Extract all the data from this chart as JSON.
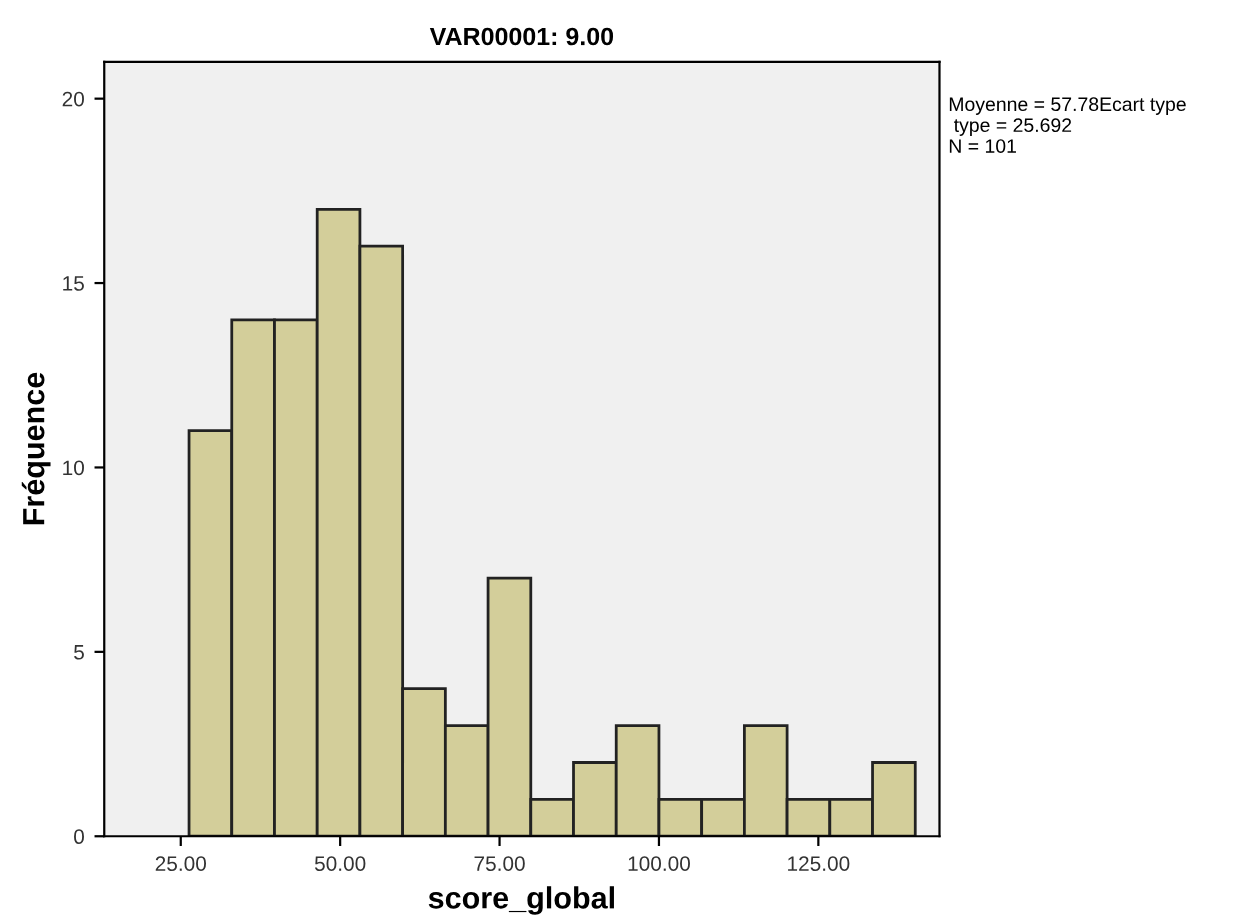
{
  "chart_data": {
    "type": "histogram",
    "title": "VAR00001: 9.00",
    "xlabel": "score_global",
    "ylabel": "Fréquence",
    "bins": [
      26.3,
      33.0,
      39.7,
      46.4,
      53.1,
      59.8,
      66.5,
      73.2,
      79.9,
      86.6,
      93.3,
      100.0,
      106.7,
      113.4,
      120.1,
      126.8,
      133.5,
      140.2
    ],
    "values": [
      11,
      14,
      14,
      17,
      16,
      4,
      3,
      7,
      1,
      2,
      3,
      1,
      1,
      3,
      1,
      1,
      2
    ],
    "color": "#d3ce9a",
    "xlim": [
      13,
      144
    ],
    "xticks": [
      {
        "value": 25,
        "label": "25.00"
      },
      {
        "value": 50,
        "label": "50.00"
      },
      {
        "value": 75,
        "label": "75.00"
      },
      {
        "value": 100,
        "label": "100.00"
      },
      {
        "value": 125,
        "label": "125.00"
      }
    ],
    "ylim": [
      0,
      21
    ],
    "yticks": [
      0,
      5,
      10,
      15,
      20
    ],
    "grid": false,
    "legend": false,
    "annotations": [
      "Moyenne = 57.78Ecart type\n type = 25.692\nN = 101"
    ]
  }
}
